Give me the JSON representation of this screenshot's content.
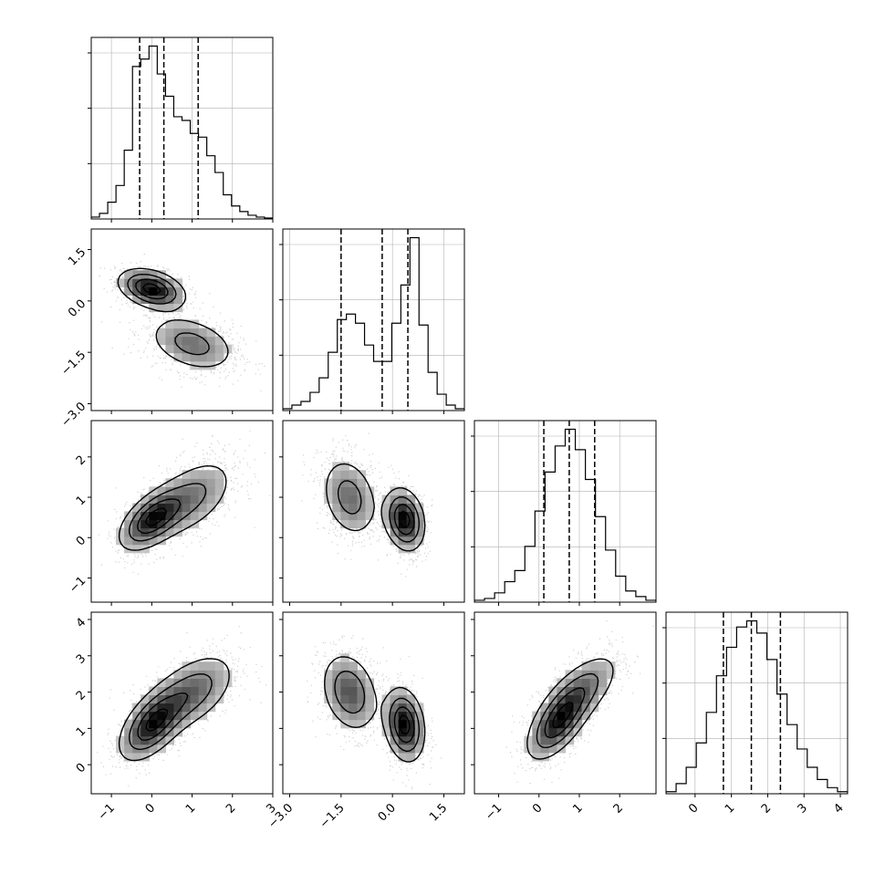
{
  "chart_data": {
    "type": "corner",
    "description_free": true,
    "variables": [
      {
        "range": [
          -1.5,
          3.0
        ],
        "ticks": [
          -1,
          0,
          1,
          2,
          3
        ],
        "tick_labels": [
          "−1",
          "0",
          "1",
          "2",
          "3"
        ],
        "quantiles": [
          -0.3,
          0.3,
          1.15
        ],
        "hist": [
          0.01,
          0.03,
          0.09,
          0.18,
          0.37,
          0.82,
          0.86,
          0.93,
          0.78,
          0.66,
          0.55,
          0.53,
          0.46,
          0.44,
          0.34,
          0.25,
          0.13,
          0.07,
          0.04,
          0.02,
          0.01,
          0.005
        ]
      },
      {
        "range": [
          -3.2,
          2.1
        ],
        "ticks": [
          -3.0,
          -1.5,
          0.0,
          1.5
        ],
        "tick_labels": [
          "−3.0",
          "−1.5",
          "0.0",
          "1.5"
        ],
        "quantiles": [
          -1.5,
          -0.3,
          0.45
        ],
        "hist": [
          0.01,
          0.03,
          0.05,
          0.1,
          0.18,
          0.32,
          0.5,
          0.53,
          0.48,
          0.36,
          0.27,
          0.27,
          0.48,
          0.69,
          0.95,
          0.47,
          0.21,
          0.09,
          0.03,
          0.01
        ]
      },
      {
        "range": [
          -1.6,
          2.9
        ],
        "ticks": [
          -1,
          0,
          1,
          2
        ],
        "tick_labels": [
          "−1",
          "0",
          "1",
          "2"
        ],
        "quantiles": [
          0.12,
          0.75,
          1.38
        ],
        "hist": [
          0.01,
          0.02,
          0.05,
          0.11,
          0.17,
          0.3,
          0.49,
          0.7,
          0.84,
          0.93,
          0.82,
          0.66,
          0.46,
          0.28,
          0.14,
          0.06,
          0.03,
          0.01
        ]
      },
      {
        "range": [
          -0.8,
          4.2
        ],
        "ticks": [
          0,
          1,
          2,
          3,
          4
        ],
        "tick_labels": [
          "0",
          "1",
          "2",
          "3",
          "4"
        ],
        "quantiles": [
          0.78,
          1.55,
          2.35
        ],
        "hist": [
          0.01,
          0.05,
          0.13,
          0.25,
          0.4,
          0.58,
          0.72,
          0.82,
          0.85,
          0.79,
          0.66,
          0.49,
          0.34,
          0.22,
          0.13,
          0.07,
          0.03,
          0.01
        ]
      }
    ],
    "hist_yticks": [
      0.33,
      0.66,
      0.99
    ],
    "axis_label_pairs": [
      {
        "row": 1,
        "col": 0
      },
      {
        "row": 2,
        "col": 0
      },
      {
        "row": 2,
        "col": 1
      },
      {
        "row": 3,
        "col": 0
      },
      {
        "row": 3,
        "col": 1
      },
      {
        "row": 3,
        "col": 2
      }
    ],
    "mixture": [
      {
        "weight": 0.5,
        "mean": [
          0.0,
          0.35,
          0.45,
          1.1
        ],
        "sd": [
          0.45,
          0.32,
          0.42,
          0.55
        ],
        "corr": {
          "0-1": -0.35,
          "0-2": 0.55,
          "0-3": 0.55,
          "1-2": -0.2,
          "1-3": -0.2,
          "2-3": 0.6
        }
      },
      {
        "weight": 0.5,
        "mean": [
          1.0,
          -1.25,
          1.0,
          2.0
        ],
        "sd": [
          0.6,
          0.45,
          0.55,
          0.6
        ],
        "corr": {
          "0-1": -0.35,
          "0-2": 0.5,
          "0-3": 0.5,
          "1-2": -0.25,
          "1-3": -0.25,
          "2-3": 0.65
        }
      }
    ],
    "contour_levels": [
      0.18,
      0.42,
      0.68,
      0.9
    ],
    "grid": true,
    "colors": {
      "hist_line": "#000000",
      "density": "#000000",
      "grid": "#b0b0b0"
    }
  }
}
